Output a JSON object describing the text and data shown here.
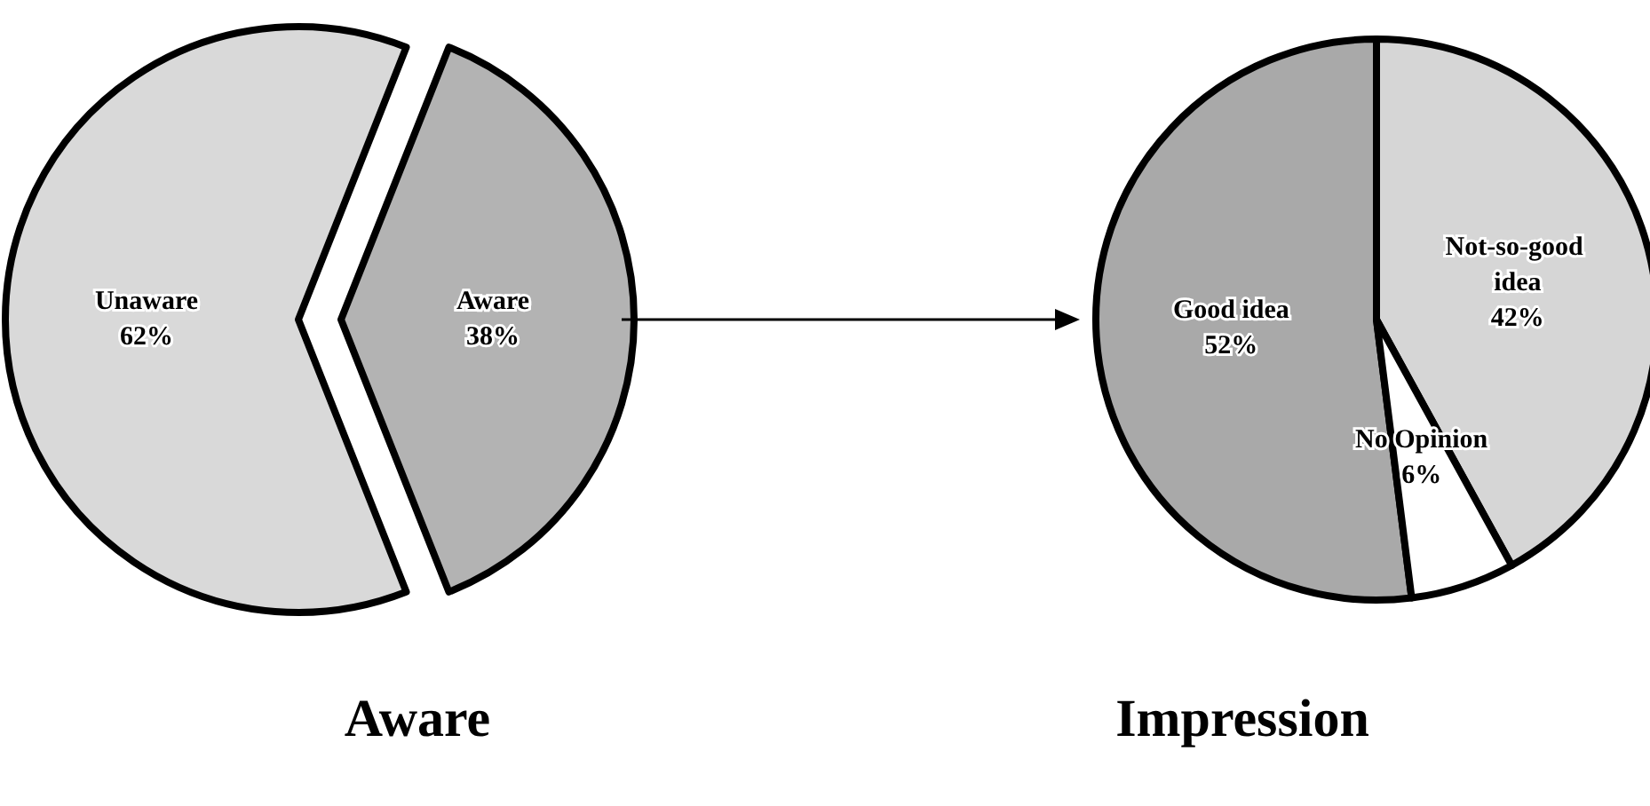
{
  "chart_data": [
    {
      "type": "pie",
      "title": "Aware",
      "categories": [
        "Unaware",
        "Aware"
      ],
      "values": [
        62,
        38
      ],
      "value_labels": [
        "62%",
        "38%"
      ],
      "colors": [
        "#d9d9d9",
        "#b3b3b3"
      ]
    },
    {
      "type": "pie",
      "title": "Impression",
      "categories": [
        "Good idea",
        "Not-so-good idea",
        "No Opinion"
      ],
      "values": [
        52,
        42,
        6
      ],
      "value_labels": [
        "52%",
        "42%",
        "6%"
      ],
      "colors": [
        "#a9a9a9",
        "#d6d6d6",
        "#ffffff"
      ]
    }
  ]
}
